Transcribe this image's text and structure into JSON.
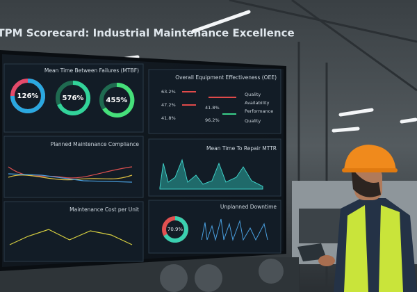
{
  "header": {
    "title": "TPM Scorecard: Industrial Maintenance Excellence"
  },
  "panels": [
    {
      "title": "Mean Time Between Failures (MTBF)",
      "gauges": [
        "126%",
        "576%",
        "455%"
      ]
    },
    {
      "title": "Overall Equipment Effectiveness (OEE)",
      "values": [
        "63.2%",
        "47.2%",
        "41.8%"
      ],
      "metrics": [
        "Quality",
        "Availability",
        "Performance",
        "Quality"
      ],
      "metric_values": [
        "41.8%",
        "96.2%"
      ]
    },
    {
      "title": "Planned Maintenance Compliance"
    },
    {
      "title": "Mean Time To Repair MTTR"
    },
    {
      "title": "Maintenance Cost per Unit"
    },
    {
      "title": "Unplanned Downtime",
      "donut": "70.9%"
    }
  ]
}
